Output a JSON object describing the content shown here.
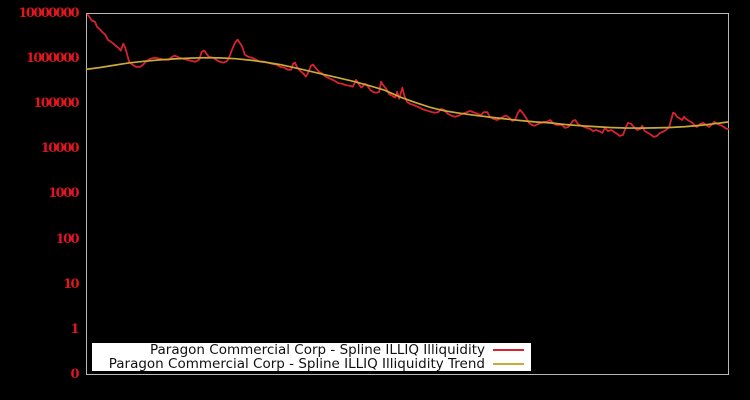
{
  "window": {
    "background": "#000000"
  },
  "chart_data": {
    "type": "line",
    "title": "",
    "xlabel": "",
    "ylabel": "",
    "grid": "off",
    "frame_color": "#b8b8b8",
    "y_axis": {
      "scale": "log",
      "tick_label_color": "#e01620",
      "tick_labels": [
        "10000000",
        "1000000",
        "100000",
        "10000",
        "1000",
        "100",
        "10",
        "1",
        "0"
      ]
    },
    "x_axis": {
      "tick_labels": []
    },
    "legend": {
      "position": "bottom-left",
      "background": "#ffffff",
      "items": [
        {
          "label": "Paragon Commercial Corp - Spline ILLIQ Illiquidity",
          "color": "#d8232e"
        },
        {
          "label": "Paragon Commercial Corp - Spline ILLIQ Illiquidity Trend",
          "color": "#c8a93a"
        }
      ]
    },
    "series": [
      {
        "name": "Paragon Commercial Corp - Spline ILLIQ Illiquidity",
        "color": "#d8232e",
        "points": [
          [
            0.002,
            9800000
          ],
          [
            0.006,
            8100000
          ],
          [
            0.009,
            7000000
          ],
          [
            0.014,
            6600000
          ],
          [
            0.017,
            5100000
          ],
          [
            0.022,
            4400000
          ],
          [
            0.026,
            3800000
          ],
          [
            0.03,
            3400000
          ],
          [
            0.034,
            2600000
          ],
          [
            0.04,
            2300000
          ],
          [
            0.045,
            2000000
          ],
          [
            0.05,
            1760000
          ],
          [
            0.054,
            1510000
          ],
          [
            0.058,
            2150000
          ],
          [
            0.061,
            1760000
          ],
          [
            0.064,
            1230000
          ],
          [
            0.067,
            860000
          ],
          [
            0.072,
            740000
          ],
          [
            0.078,
            660000
          ],
          [
            0.084,
            660000
          ],
          [
            0.089,
            740000
          ],
          [
            0.093,
            860000
          ],
          [
            0.1,
            1000000
          ],
          [
            0.107,
            1050000
          ],
          [
            0.115,
            1000000
          ],
          [
            0.123,
            950000
          ],
          [
            0.129,
            950000
          ],
          [
            0.134,
            1100000
          ],
          [
            0.138,
            1170000
          ],
          [
            0.145,
            1050000
          ],
          [
            0.151,
            1000000
          ],
          [
            0.157,
            950000
          ],
          [
            0.163,
            900000
          ],
          [
            0.17,
            860000
          ],
          [
            0.176,
            950000
          ],
          [
            0.18,
            1430000
          ],
          [
            0.184,
            1510000
          ],
          [
            0.187,
            1300000
          ],
          [
            0.191,
            1110000
          ],
          [
            0.198,
            1050000
          ],
          [
            0.202,
            950000
          ],
          [
            0.208,
            860000
          ],
          [
            0.213,
            820000
          ],
          [
            0.218,
            860000
          ],
          [
            0.222,
            1000000
          ],
          [
            0.227,
            1580000
          ],
          [
            0.232,
            2300000
          ],
          [
            0.236,
            2640000
          ],
          [
            0.24,
            2150000
          ],
          [
            0.243,
            1850000
          ],
          [
            0.247,
            1230000
          ],
          [
            0.252,
            1110000
          ],
          [
            0.258,
            1050000
          ],
          [
            0.264,
            950000
          ],
          [
            0.271,
            860000
          ],
          [
            0.277,
            860000
          ],
          [
            0.283,
            820000
          ],
          [
            0.289,
            770000
          ],
          [
            0.296,
            740000
          ],
          [
            0.302,
            660000
          ],
          [
            0.308,
            640000
          ],
          [
            0.314,
            570000
          ],
          [
            0.319,
            570000
          ],
          [
            0.322,
            770000
          ],
          [
            0.325,
            820000
          ],
          [
            0.328,
            660000
          ],
          [
            0.333,
            540000
          ],
          [
            0.338,
            470000
          ],
          [
            0.342,
            400000
          ],
          [
            0.345,
            470000
          ],
          [
            0.35,
            700000
          ],
          [
            0.353,
            740000
          ],
          [
            0.358,
            600000
          ],
          [
            0.362,
            520000
          ],
          [
            0.367,
            470000
          ],
          [
            0.373,
            400000
          ],
          [
            0.38,
            360000
          ],
          [
            0.386,
            330000
          ],
          [
            0.392,
            290000
          ],
          [
            0.398,
            280000
          ],
          [
            0.404,
            260000
          ],
          [
            0.411,
            250000
          ],
          [
            0.415,
            240000
          ],
          [
            0.42,
            340000
          ],
          [
            0.423,
            290000
          ],
          [
            0.428,
            230000
          ],
          [
            0.431,
            250000
          ],
          [
            0.434,
            280000
          ],
          [
            0.437,
            260000
          ],
          [
            0.442,
            205000
          ],
          [
            0.446,
            185000
          ],
          [
            0.451,
            176000
          ],
          [
            0.456,
            185000
          ],
          [
            0.459,
            310000
          ],
          [
            0.462,
            260000
          ],
          [
            0.467,
            216000
          ],
          [
            0.471,
            167000
          ],
          [
            0.476,
            152000
          ],
          [
            0.481,
            138000
          ],
          [
            0.484,
            185000
          ],
          [
            0.487,
            130000
          ],
          [
            0.492,
            228000
          ],
          [
            0.495,
            152000
          ],
          [
            0.499,
            112000
          ],
          [
            0.504,
            100000
          ],
          [
            0.509,
            95000
          ],
          [
            0.513,
            90000
          ],
          [
            0.52,
            81000
          ],
          [
            0.526,
            74000
          ],
          [
            0.532,
            70000
          ],
          [
            0.538,
            66000
          ],
          [
            0.543,
            64000
          ],
          [
            0.548,
            66000
          ],
          [
            0.552,
            77000
          ],
          [
            0.557,
            74000
          ],
          [
            0.562,
            61000
          ],
          [
            0.568,
            55000
          ],
          [
            0.574,
            52000
          ],
          [
            0.58,
            55000
          ],
          [
            0.586,
            61000
          ],
          [
            0.593,
            66000
          ],
          [
            0.597,
            70000
          ],
          [
            0.602,
            66000
          ],
          [
            0.608,
            61000
          ],
          [
            0.614,
            57000
          ],
          [
            0.619,
            66000
          ],
          [
            0.624,
            66000
          ],
          [
            0.628,
            52000
          ],
          [
            0.633,
            47000
          ],
          [
            0.639,
            44000
          ],
          [
            0.644,
            47000
          ],
          [
            0.649,
            52000
          ],
          [
            0.653,
            55000
          ],
          [
            0.658,
            50000
          ],
          [
            0.663,
            42000
          ],
          [
            0.667,
            44000
          ],
          [
            0.672,
            64000
          ],
          [
            0.675,
            74000
          ],
          [
            0.68,
            61000
          ],
          [
            0.684,
            50000
          ],
          [
            0.689,
            38000
          ],
          [
            0.694,
            34000
          ],
          [
            0.698,
            33000
          ],
          [
            0.703,
            36000
          ],
          [
            0.708,
            38000
          ],
          [
            0.712,
            40000
          ],
          [
            0.717,
            40000
          ],
          [
            0.722,
            44000
          ],
          [
            0.726,
            38000
          ],
          [
            0.731,
            34500
          ],
          [
            0.736,
            34500
          ],
          [
            0.74,
            34500
          ],
          [
            0.745,
            29500
          ],
          [
            0.75,
            31000
          ],
          [
            0.754,
            36000
          ],
          [
            0.757,
            42000
          ],
          [
            0.761,
            44000
          ],
          [
            0.765,
            36000
          ],
          [
            0.77,
            33000
          ],
          [
            0.775,
            31000
          ],
          [
            0.779,
            29500
          ],
          [
            0.784,
            28000
          ],
          [
            0.789,
            25000
          ],
          [
            0.793,
            26400
          ],
          [
            0.798,
            25000
          ],
          [
            0.803,
            22800
          ],
          [
            0.807,
            29500
          ],
          [
            0.812,
            25000
          ],
          [
            0.817,
            26400
          ],
          [
            0.821,
            24000
          ],
          [
            0.826,
            21700
          ],
          [
            0.83,
            19600
          ],
          [
            0.835,
            20500
          ],
          [
            0.84,
            31000
          ],
          [
            0.843,
            38000
          ],
          [
            0.848,
            36000
          ],
          [
            0.852,
            31000
          ],
          [
            0.857,
            26400
          ],
          [
            0.862,
            28000
          ],
          [
            0.865,
            33000
          ],
          [
            0.869,
            25000
          ],
          [
            0.874,
            22800
          ],
          [
            0.879,
            20500
          ],
          [
            0.883,
            18600
          ],
          [
            0.888,
            19600
          ],
          [
            0.893,
            22800
          ],
          [
            0.897,
            24000
          ],
          [
            0.902,
            26400
          ],
          [
            0.907,
            31000
          ],
          [
            0.91,
            44000
          ],
          [
            0.913,
            64000
          ],
          [
            0.916,
            61000
          ],
          [
            0.919,
            52000
          ],
          [
            0.924,
            47000
          ],
          [
            0.927,
            44000
          ],
          [
            0.93,
            52000
          ],
          [
            0.933,
            47000
          ],
          [
            0.938,
            42000
          ],
          [
            0.943,
            38000
          ],
          [
            0.947,
            33000
          ],
          [
            0.95,
            31000
          ],
          [
            0.955,
            36000
          ],
          [
            0.96,
            38000
          ],
          [
            0.964,
            34500
          ],
          [
            0.969,
            31000
          ],
          [
            0.974,
            36000
          ],
          [
            0.977,
            40000
          ],
          [
            0.98,
            38000
          ],
          [
            0.985,
            34500
          ],
          [
            0.989,
            33000
          ],
          [
            0.994,
            29500
          ],
          [
            0.997,
            28000
          ],
          [
            1.0,
            28000
          ]
        ]
      },
      {
        "name": "Paragon Commercial Corp - Spline ILLIQ Illiquidity Trend",
        "color": "#c8a93a",
        "points": [
          [
            0.0,
            580000
          ],
          [
            0.022,
            640000
          ],
          [
            0.045,
            720000
          ],
          [
            0.068,
            810000
          ],
          [
            0.092,
            880000
          ],
          [
            0.115,
            940000
          ],
          [
            0.138,
            990000
          ],
          [
            0.162,
            1030000
          ],
          [
            0.185,
            1050000
          ],
          [
            0.208,
            1040000
          ],
          [
            0.232,
            1000000
          ],
          [
            0.255,
            930000
          ],
          [
            0.278,
            840000
          ],
          [
            0.302,
            740000
          ],
          [
            0.325,
            630000
          ],
          [
            0.348,
            530000
          ],
          [
            0.372,
            440000
          ],
          [
            0.395,
            370000
          ],
          [
            0.418,
            310000
          ],
          [
            0.442,
            250000
          ],
          [
            0.465,
            200000
          ],
          [
            0.488,
            143000
          ],
          [
            0.512,
            108000
          ],
          [
            0.535,
            84000
          ],
          [
            0.558,
            70000
          ],
          [
            0.582,
            62000
          ],
          [
            0.605,
            56000
          ],
          [
            0.628,
            51000
          ],
          [
            0.652,
            46500
          ],
          [
            0.675,
            43000
          ],
          [
            0.698,
            40000
          ],
          [
            0.722,
            38000
          ],
          [
            0.745,
            35000
          ],
          [
            0.768,
            33000
          ],
          [
            0.792,
            31500
          ],
          [
            0.815,
            30000
          ],
          [
            0.838,
            29300
          ],
          [
            0.862,
            29200
          ],
          [
            0.885,
            29500
          ],
          [
            0.908,
            30000
          ],
          [
            0.932,
            31500
          ],
          [
            0.955,
            33500
          ],
          [
            0.978,
            36500
          ],
          [
            1.0,
            40000
          ]
        ]
      }
    ]
  }
}
